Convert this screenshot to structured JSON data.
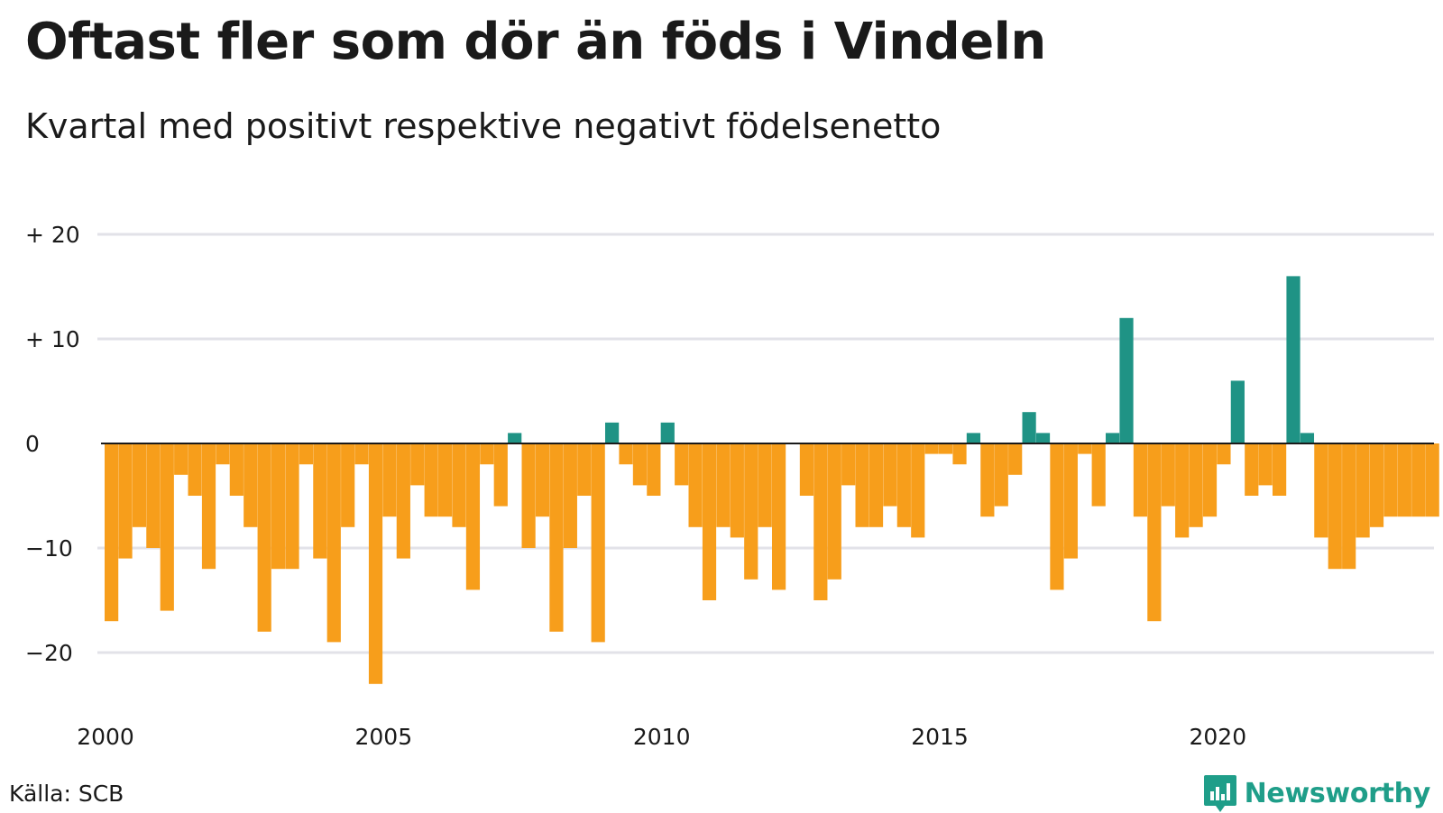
{
  "title": "Oftast fler som dör än föds i Vindeln",
  "subtitle": "Kvartal med positivt respektive negativt födelsenetto",
  "source": "Källa: SCB",
  "brand": "Newsworthy",
  "colors": {
    "positive": "#1f9385",
    "negative": "#f79e1b",
    "grid": "#e2e2e8",
    "zero": "#1a1a1a",
    "brand": "#1f9e89"
  },
  "icons": {
    "logo": "newsworthy-bar-chart-icon"
  },
  "chart_data": {
    "type": "bar",
    "x_start": "2000-Q1",
    "frequency": "quarterly",
    "y_ticks": [
      20,
      10,
      0,
      -10,
      -20
    ],
    "y_tick_labels": [
      "+ 20",
      "+ 10",
      "0",
      "−10",
      "−20"
    ],
    "ylim": [
      -25,
      22
    ],
    "x_ticks": [
      "2000",
      "2005",
      "2010",
      "2015",
      "2020"
    ],
    "grid": true,
    "values": [
      -17,
      -11,
      -8,
      -10,
      -16,
      -3,
      -5,
      -12,
      -2,
      -5,
      -8,
      -18,
      -12,
      -12,
      -2,
      -11,
      -19,
      -8,
      -2,
      -23,
      -7,
      -11,
      -4,
      -7,
      -7,
      -8,
      -14,
      -2,
      -6,
      1,
      -10,
      -7,
      -18,
      -10,
      -5,
      -19,
      2,
      -2,
      -4,
      -5,
      2,
      -4,
      -8,
      -15,
      -8,
      -9,
      -13,
      -8,
      -14,
      0,
      -5,
      -15,
      -13,
      -4,
      -8,
      -8,
      -6,
      -8,
      -9,
      -1,
      -1,
      -2,
      1,
      -7,
      -6,
      -3,
      3,
      1,
      -14,
      -11,
      -1,
      -6,
      1,
      12,
      -7,
      -17,
      -6,
      -9,
      -8,
      -7,
      -2,
      6,
      -5,
      -4,
      -5,
      16,
      1,
      -9,
      -12,
      -12,
      -9,
      -8,
      -7,
      -7,
      -7,
      -7
    ]
  }
}
